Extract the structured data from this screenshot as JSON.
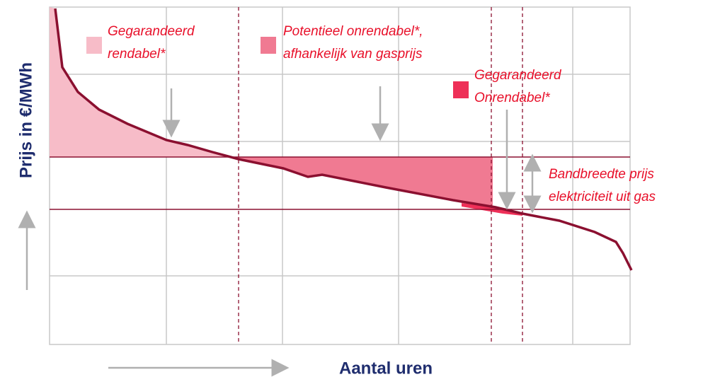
{
  "y_axis_label": "Prijs in €/MWh",
  "x_axis_label": "Aantal uren",
  "legend": [
    {
      "lines": [
        "Gegarandeerd",
        "rendabel*"
      ]
    },
    {
      "lines": [
        "Potentieel onrendabel*,",
        "afhankelijk van gasprijs"
      ]
    },
    {
      "lines": [
        "Gegarandeerd",
        "Onrendabel*"
      ]
    }
  ],
  "band_label": {
    "lines": [
      "Bandbreedte prijs",
      "elektriciteit uit gas"
    ]
  }
}
